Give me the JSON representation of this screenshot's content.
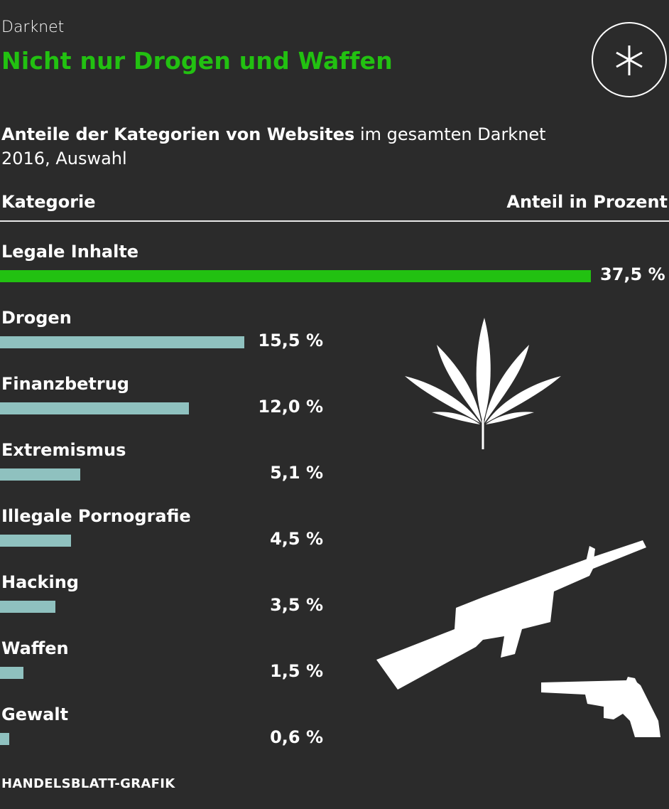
{
  "header": {
    "kicker": "Darknet",
    "title": "Nicht nur Drogen und Waffen",
    "subtitle_bold": "Anteile der Kategorien von Websites",
    "subtitle_rest": " im gesamten Darknet 2016, Auswahl",
    "logo_icon": "asterisk-circle-icon"
  },
  "columns": {
    "left": "Kategorie",
    "right": "Anteil in Prozent"
  },
  "chart_data": {
    "type": "bar",
    "orientation": "horizontal",
    "categories": [
      "Legale Inhalte",
      "Drogen",
      "Finanzbetrug",
      "Extremismus",
      "Illegale Pornografie",
      "Hacking",
      "Waffen",
      "Gewalt"
    ],
    "values": [
      37.5,
      15.5,
      12.0,
      5.1,
      4.5,
      3.5,
      1.5,
      0.6
    ],
    "value_labels": [
      "37,5 %",
      "15,5 %",
      "12,0 %",
      "5,1 %",
      "4,5 %",
      "3,5 %",
      "1,5 %",
      "0,6 %"
    ],
    "xlim": [
      0,
      37.5
    ],
    "unit": "%",
    "grid": false,
    "colors": {
      "highlight": "#22c111",
      "default": "#8fc1bf",
      "background": "#2b2b2b"
    }
  },
  "illustrations": [
    "cannabis-leaf-icon",
    "rifle-icon",
    "revolver-icon"
  ],
  "source": "HANDELSBLATT-GRAFIK"
}
